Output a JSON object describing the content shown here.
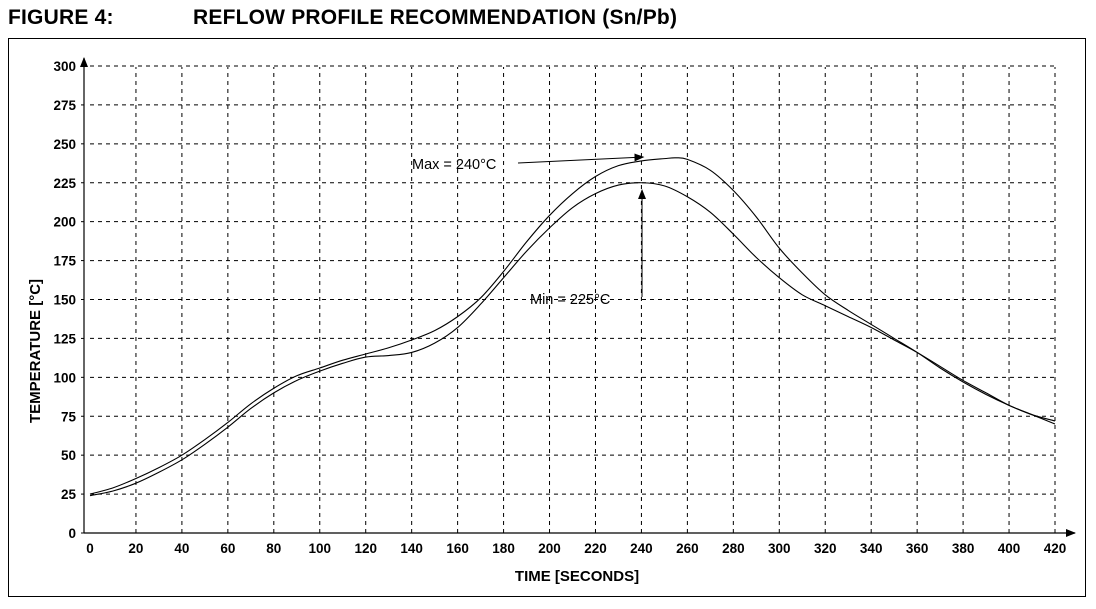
{
  "figure": {
    "number": "FIGURE 4:",
    "title": "REFLOW PROFILE RECOMMENDATION (Sn/Pb)"
  },
  "chart_data": {
    "type": "line",
    "title": "REFLOW PROFILE RECOMMENDATION (Sn/Pb)",
    "xlabel": "TIME [SECONDS]",
    "ylabel": "TEMPERATURE [°C]",
    "xlim": [
      0,
      420
    ],
    "ylim": [
      0,
      300
    ],
    "x_ticks": [
      0,
      20,
      40,
      60,
      80,
      100,
      120,
      140,
      160,
      180,
      200,
      220,
      240,
      260,
      280,
      300,
      320,
      340,
      360,
      380,
      400,
      420
    ],
    "y_ticks": [
      0,
      25,
      50,
      75,
      100,
      125,
      150,
      175,
      200,
      225,
      250,
      275,
      300
    ],
    "grid": true,
    "grid_style": "dashed",
    "series": [
      {
        "x": [
          0,
          10,
          20,
          30,
          40,
          50,
          60,
          70,
          80,
          90,
          100,
          110,
          120,
          130,
          140,
          150,
          160,
          170,
          180,
          190,
          200,
          210,
          220,
          230,
          240,
          250,
          255,
          260,
          270,
          280,
          290,
          300,
          310,
          320,
          330,
          340,
          350,
          360,
          370,
          380,
          390,
          400,
          410,
          420
        ],
        "y": [
          25,
          29,
          35,
          42,
          50,
          60,
          71,
          83,
          93,
          101,
          106,
          111,
          115,
          119,
          124,
          130,
          139,
          151,
          168,
          187,
          204,
          218,
          229,
          236,
          239,
          240.5,
          241,
          240,
          233,
          220,
          203,
          183,
          167,
          153,
          143,
          134,
          125,
          116,
          106,
          97,
          89,
          82,
          76,
          72
        ]
      },
      {
        "x": [
          0,
          10,
          20,
          30,
          40,
          50,
          60,
          70,
          80,
          90,
          100,
          110,
          120,
          130,
          140,
          150,
          160,
          170,
          180,
          190,
          200,
          210,
          220,
          230,
          240,
          250,
          260,
          270,
          280,
          290,
          300,
          310,
          320,
          330,
          340,
          350,
          360,
          370,
          380,
          390,
          400,
          410,
          420
        ],
        "y": [
          24,
          27,
          32,
          39,
          47,
          57,
          68,
          80,
          90,
          98,
          104,
          109,
          113,
          114,
          116,
          122,
          132,
          147,
          164,
          181,
          196,
          209,
          218,
          223.5,
          225,
          223,
          216,
          206,
          192,
          177,
          164,
          153,
          146,
          139,
          132,
          124,
          116,
          107,
          98,
          90,
          82,
          76,
          70
        ]
      }
    ],
    "annotations": [
      {
        "text": "Max = 240°C",
        "x": 240,
        "y": 240
      },
      {
        "text": "Min = 225°C",
        "x": 242,
        "y": 225
      }
    ]
  }
}
